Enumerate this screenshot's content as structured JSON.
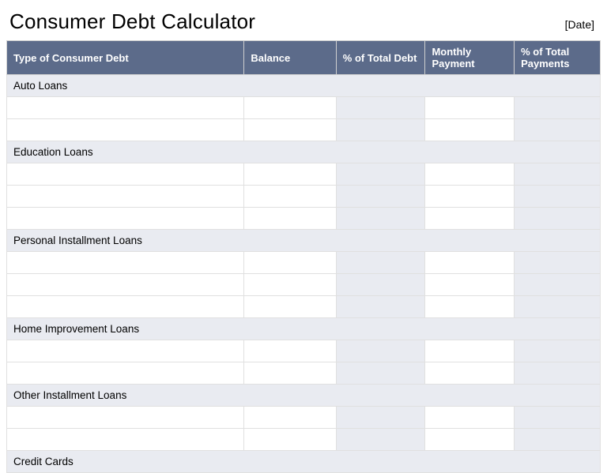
{
  "title": "Consumer Debt Calculator",
  "date_placeholder": "[Date]",
  "styling": {
    "header_bg": "#5c6b8a",
    "header_text": "#ffffff",
    "section_bg": "#e9ebf1",
    "shaded_cell_bg": "#e9ebf1",
    "border_color": "#e0e0e0",
    "body_bg": "#ffffff",
    "font_family": "Verdana, Geneva, Tahoma, sans-serif",
    "title_fontsize": 26,
    "header_fontsize": 13,
    "cell_fontsize": 13
  },
  "columns": [
    {
      "key": "type",
      "label": "Type of Consumer Debt",
      "width": "40%",
      "shaded": false
    },
    {
      "key": "balance",
      "label": "Balance",
      "width": "15.5%",
      "shaded": false
    },
    {
      "key": "pct_total_debt",
      "label": "% of Total Debt",
      "width": "15%",
      "shaded": true
    },
    {
      "key": "monthly_payment",
      "label": "Monthly Payment",
      "width": "15%",
      "shaded": false
    },
    {
      "key": "pct_total_payments",
      "label": "% of Total Payments",
      "width": "14.5%",
      "shaded": true
    }
  ],
  "sections": [
    {
      "label": "Auto Loans",
      "rows": 2
    },
    {
      "label": "Education Loans",
      "rows": 3
    },
    {
      "label": "Personal Installment Loans",
      "rows": 3
    },
    {
      "label": "Home Improvement Loans",
      "rows": 2
    },
    {
      "label": "Other Installment Loans",
      "rows": 2
    },
    {
      "label": "Credit Cards",
      "rows": 0
    }
  ]
}
